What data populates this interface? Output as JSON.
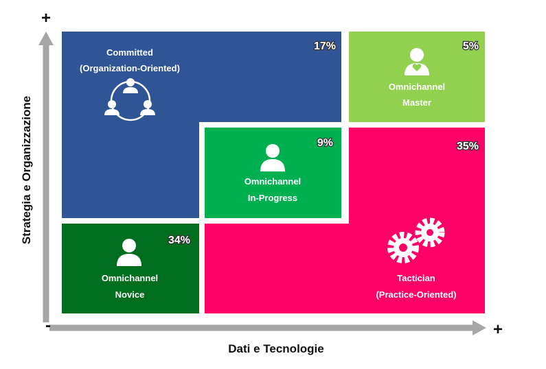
{
  "axes": {
    "y_label": "Strategia e Organizzazione",
    "x_label": "Dati e Tecnologie",
    "y_plus": "+",
    "x_plus": "+",
    "minus": "-"
  },
  "segments": [
    {
      "label_lines": [
        "Committed",
        "(Organization-Oriented)"
      ],
      "percent": "17%"
    },
    {
      "label_lines": [
        "Omnichannel",
        "Master"
      ],
      "percent": "5%"
    },
    {
      "label_lines": [
        "Omnichannel",
        "In-Progress"
      ],
      "percent": "9%"
    },
    {
      "label_lines": [
        "Omnichannel",
        "Novice"
      ],
      "percent": "34%"
    },
    {
      "label_lines": [
        "Tactician",
        "(Practice-Oriented)"
      ],
      "percent": "35%"
    }
  ]
}
